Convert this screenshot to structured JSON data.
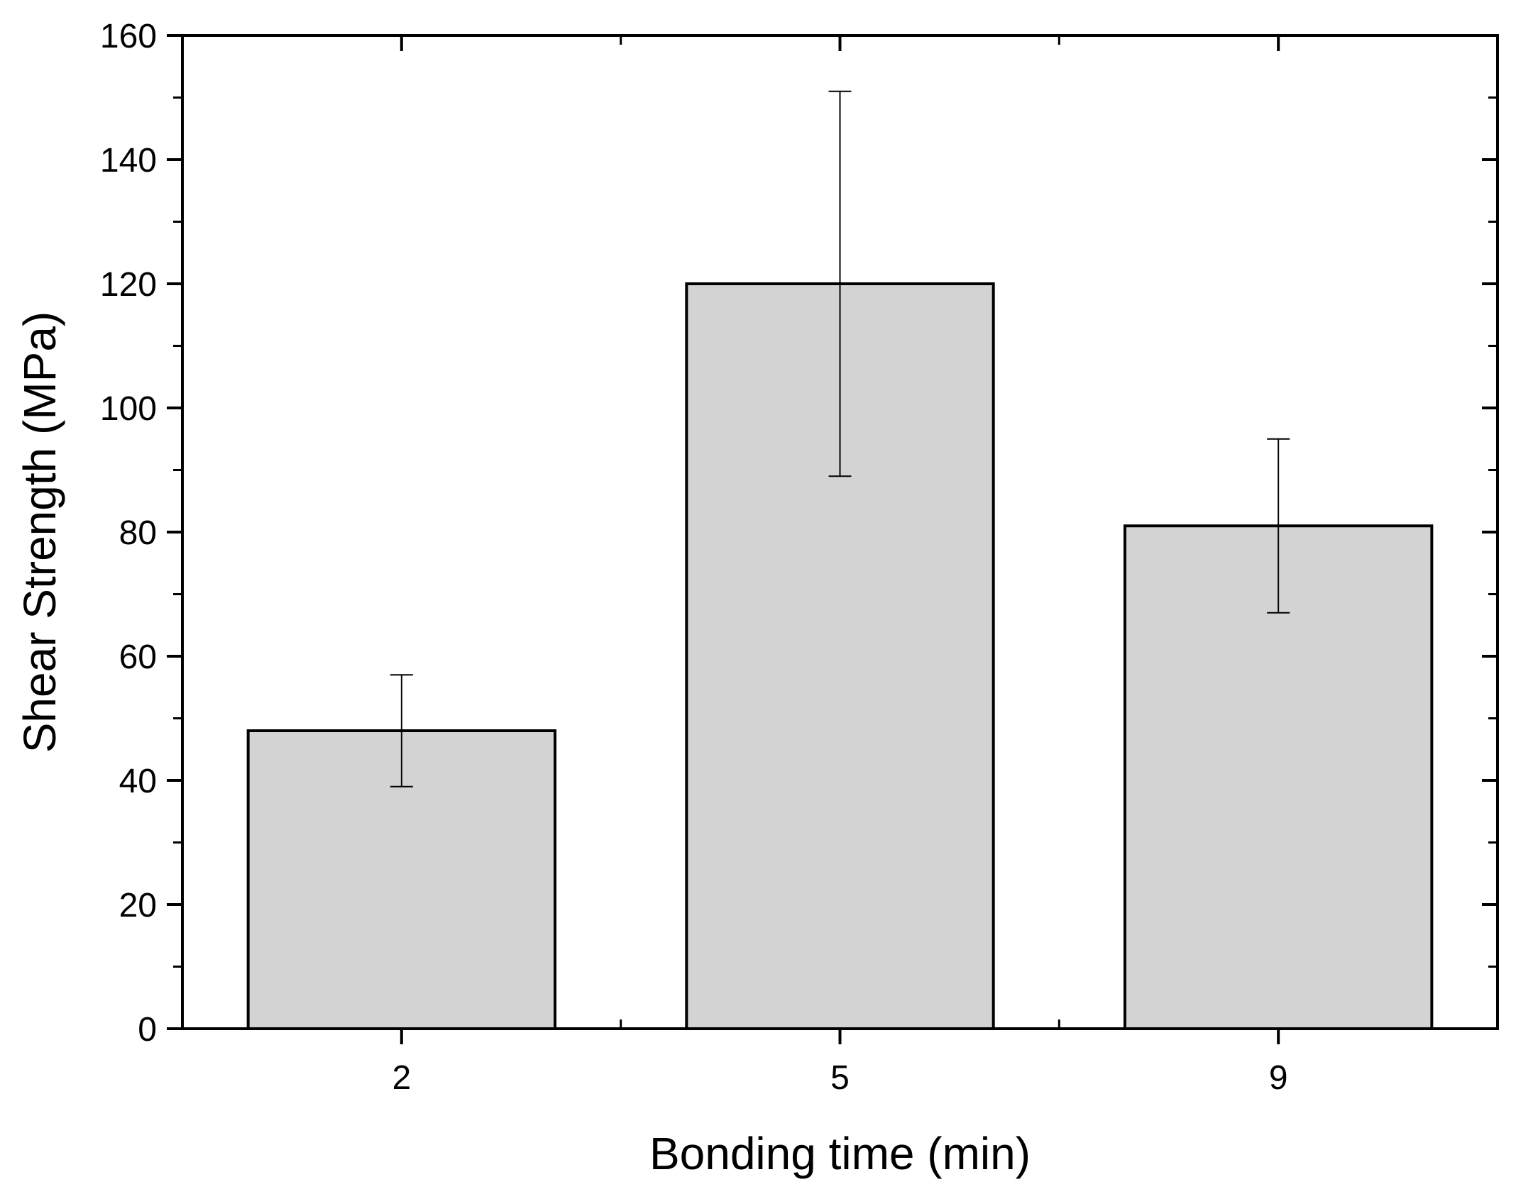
{
  "chart_data": {
    "type": "bar",
    "title": "",
    "xlabel": "Bonding time (min)",
    "ylabel": "Shear Strength (MPa)",
    "categories": [
      "2",
      "5",
      "9"
    ],
    "values": [
      48,
      120,
      81
    ],
    "error_low": [
      39,
      89,
      67
    ],
    "error_high": [
      57,
      151,
      95
    ],
    "ylim": [
      0,
      160
    ],
    "yticks": [
      "0",
      "20",
      "40",
      "60",
      "80",
      "100",
      "120",
      "140",
      "160"
    ],
    "grid": false,
    "legend": "none",
    "bar_color": "#d3d3d3",
    "edge_color": "#000000"
  }
}
